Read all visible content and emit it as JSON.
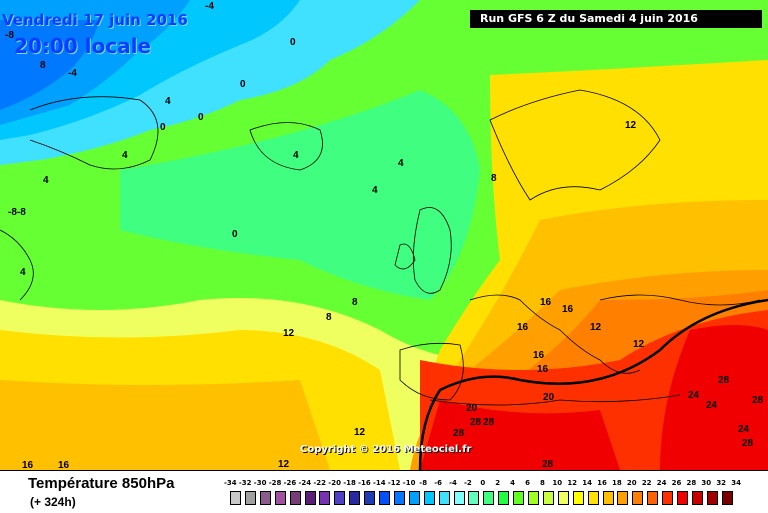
{
  "header": {
    "date": "Vendredi 17 juin 2016",
    "time": "20:00 locale",
    "run": "Run GFS 6 Z du Samedi 4 juin 2016"
  },
  "map": {
    "copyright": "Copyright © 2016 Meteociel.fr",
    "isotherm_labels": [
      "-8",
      "-4",
      "0",
      "4",
      "8",
      "12",
      "16",
      "20",
      "24",
      "28"
    ]
  },
  "footer": {
    "parameter": "Température 850hPa",
    "lead_time": "(+ 324h)"
  },
  "legend": {
    "ticks": [
      "-34",
      "-32",
      "-30",
      "-28",
      "-26",
      "-24",
      "-22",
      "-20",
      "-18",
      "-16",
      "-14",
      "-12",
      "-10",
      "-8",
      "-6",
      "-4",
      "-2",
      "0",
      "2",
      "4",
      "6",
      "8",
      "10",
      "12",
      "14",
      "16",
      "18",
      "20",
      "22",
      "24",
      "26",
      "28",
      "30",
      "32",
      "34"
    ],
    "colors": [
      "#c8c8c8",
      "#a0a0a0",
      "#8c5a8c",
      "#a050a0",
      "#783c78",
      "#5a1e78",
      "#7830b4",
      "#5040c8",
      "#2828a0",
      "#1e3cb4",
      "#0050ff",
      "#0078ff",
      "#00a0ff",
      "#00c8ff",
      "#40e0ff",
      "#80ffff",
      "#60ffc0",
      "#40ff80",
      "#20ff40",
      "#60ff20",
      "#a0ff20",
      "#c8ff40",
      "#f0ff60",
      "#ffff00",
      "#ffe000",
      "#ffc000",
      "#ffa000",
      "#ff8000",
      "#ff6000",
      "#ff3000",
      "#f00000",
      "#c80000",
      "#a00000",
      "#780000",
      "#500000"
    ]
  }
}
